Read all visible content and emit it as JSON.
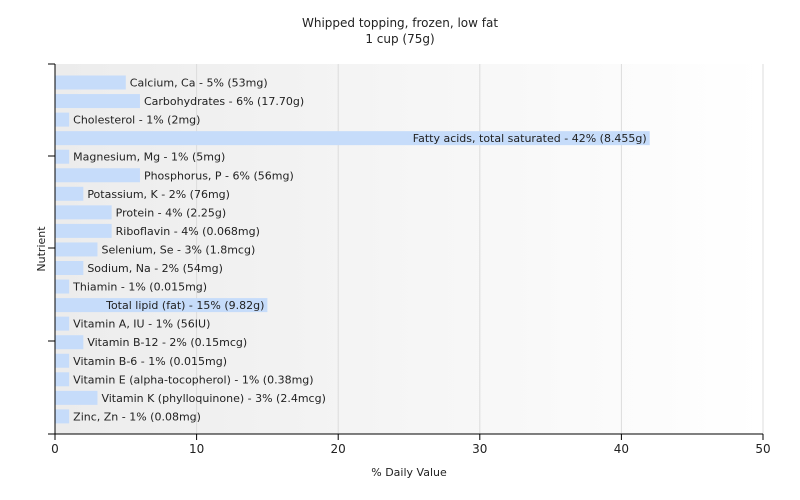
{
  "chart_data": {
    "type": "bar",
    "orientation": "horizontal",
    "title": "Whipped topping, frozen, low fat",
    "subtitle": "1 cup (75g)",
    "xlabel": "% Daily Value",
    "ylabel": "Nutrient",
    "xlim": [
      0,
      50
    ],
    "xticks": [
      0,
      10,
      20,
      30,
      40,
      50
    ],
    "grid": true,
    "bar_color": "#c6dcfa",
    "categories": [
      "Calcium, Ca",
      "Carbohydrates",
      "Cholesterol",
      "Fatty acids, total saturated",
      "Magnesium, Mg",
      "Phosphorus, P",
      "Potassium, K",
      "Protein",
      "Riboflavin",
      "Selenium, Se",
      "Sodium, Na",
      "Thiamin",
      "Total lipid (fat)",
      "Vitamin A, IU",
      "Vitamin B-12",
      "Vitamin B-6",
      "Vitamin E (alpha-tocopherol)",
      "Vitamin K (phylloquinone)",
      "Zinc, Zn"
    ],
    "values": [
      5,
      6,
      1,
      42,
      1,
      6,
      2,
      4,
      4,
      3,
      2,
      1,
      15,
      1,
      2,
      1,
      1,
      3,
      1
    ],
    "labels": [
      "Calcium, Ca - 5% (53mg)",
      "Carbohydrates - 6% (17.70g)",
      "Cholesterol - 1% (2mg)",
      "Fatty acids, total saturated - 42% (8.455g)",
      "Magnesium, Mg - 1% (5mg)",
      "Phosphorus, P - 6% (56mg)",
      "Potassium, K - 2% (76mg)",
      "Protein - 4% (2.25g)",
      "Riboflavin - 4% (0.068mg)",
      "Selenium, Se - 3% (1.8mcg)",
      "Sodium, Na - 2% (54mg)",
      "Thiamin - 1% (0.015mg)",
      "Total lipid (fat) - 15% (9.82g)",
      "Vitamin A, IU - 1% (56IU)",
      "Vitamin B-12 - 2% (0.15mcg)",
      "Vitamin B-6 - 1% (0.015mg)",
      "Vitamin E (alpha-tocopherol) - 1% (0.38mg)",
      "Vitamin K (phylloquinone) - 3% (2.4mcg)",
      "Zinc, Zn - 1% (0.08mg)"
    ]
  }
}
